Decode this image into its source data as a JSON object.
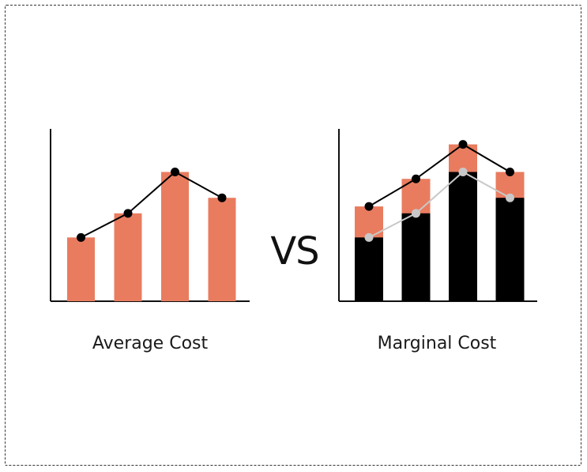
{
  "colors": {
    "bar": "#e97c5f",
    "dark": "#000000",
    "line_primary": "#000000",
    "line_secondary": "#c8c8c8",
    "axis": "#111111"
  },
  "labels": {
    "vs": "VS",
    "left_caption": "Average Cost",
    "right_caption": "Marginal Cost"
  },
  "chart_data": [
    {
      "type": "bar",
      "title": "Average Cost",
      "categories": [
        "",
        "",
        "",
        ""
      ],
      "series": [
        {
          "values": [
            0.37,
            0.51,
            0.75,
            0.6
          ]
        }
      ],
      "line": [
        0.37,
        0.51,
        0.75,
        0.6
      ],
      "ylim": [
        0,
        1
      ]
    },
    {
      "type": "bar",
      "title": "Marginal Cost",
      "categories": [
        "",
        "",
        "",
        ""
      ],
      "series": [
        {
          "values": [
            0.37,
            0.51,
            0.75,
            0.6
          ]
        },
        {
          "values": [
            0.55,
            0.71,
            0.91,
            0.75
          ]
        }
      ],
      "line": [
        0.55,
        0.71,
        0.91,
        0.75
      ],
      "line_secondary": [
        0.37,
        0.51,
        0.75,
        0.6
      ],
      "ylim": [
        0,
        1
      ]
    }
  ]
}
